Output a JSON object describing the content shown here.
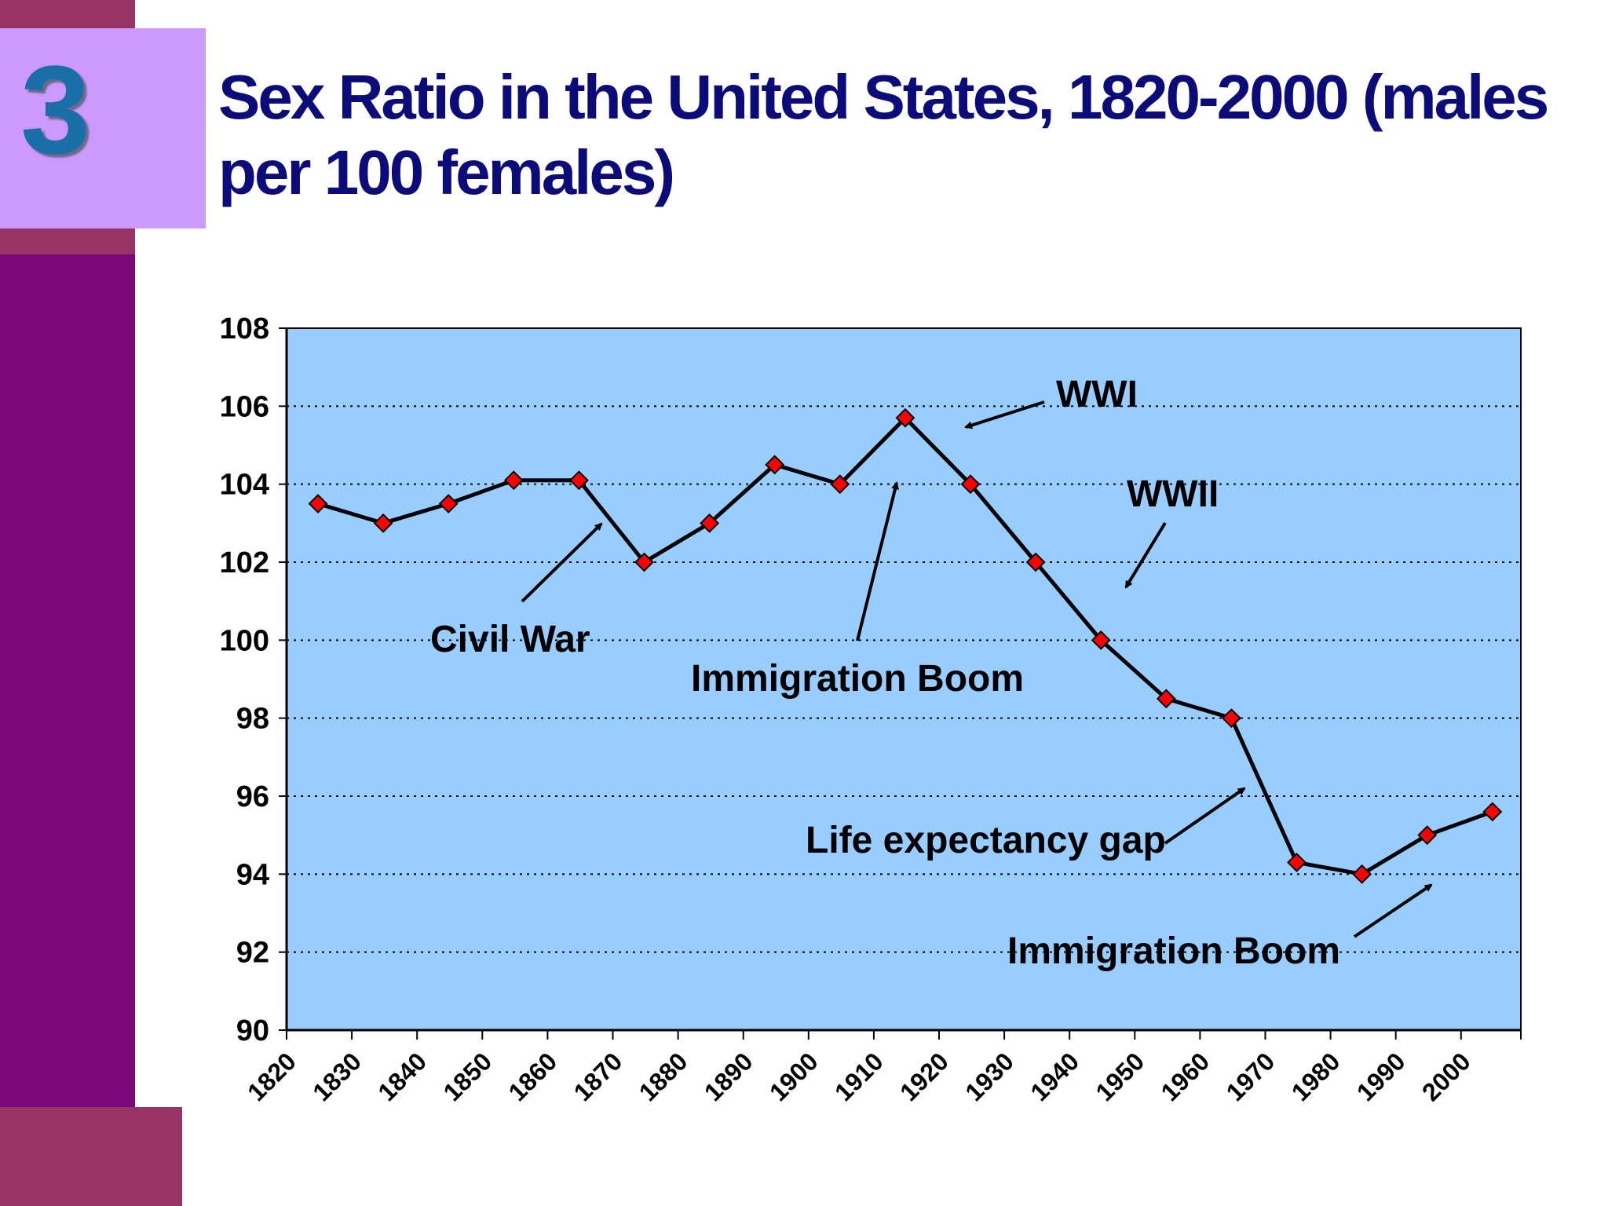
{
  "slide": {
    "number": "3"
  },
  "colors": {
    "sidebar": "#7d0a7d",
    "accent_bar": "#983366",
    "number_box": "#cc99ff",
    "title": "#0b0b7a",
    "plot_bg": "#99ccff",
    "marker": "#ff0000",
    "line": "#000000"
  },
  "chart_data": {
    "type": "line",
    "title": "Sex Ratio in the United States, 1820-2000 (males per 100 females)",
    "xlabel": "",
    "ylabel": "",
    "ylim": [
      90,
      108
    ],
    "yticks": [
      90,
      92,
      94,
      96,
      98,
      100,
      102,
      104,
      106,
      108
    ],
    "categories": [
      "1820",
      "1830",
      "1840",
      "1850",
      "1860",
      "1870",
      "1880",
      "1890",
      "1900",
      "1910",
      "1920",
      "1930",
      "1940",
      "1950",
      "1960",
      "1970",
      "1980",
      "1990",
      "2000"
    ],
    "series": [
      {
        "values": [
          103.5,
          103.0,
          103.5,
          104.1,
          104.1,
          102.0,
          103.0,
          104.5,
          104.0,
          105.7,
          104.0,
          102.0,
          100.0,
          98.5,
          98.0,
          94.3,
          94.0,
          95.0,
          95.6
        ]
      }
    ],
    "grid": "horizontal dotted",
    "annotations": [
      {
        "text": "Civil War"
      },
      {
        "text": "Immigration Boom"
      },
      {
        "text": "WWI"
      },
      {
        "text": "WWII"
      },
      {
        "text": "Life expectancy gap"
      },
      {
        "text": "Immigration Boom"
      }
    ]
  }
}
